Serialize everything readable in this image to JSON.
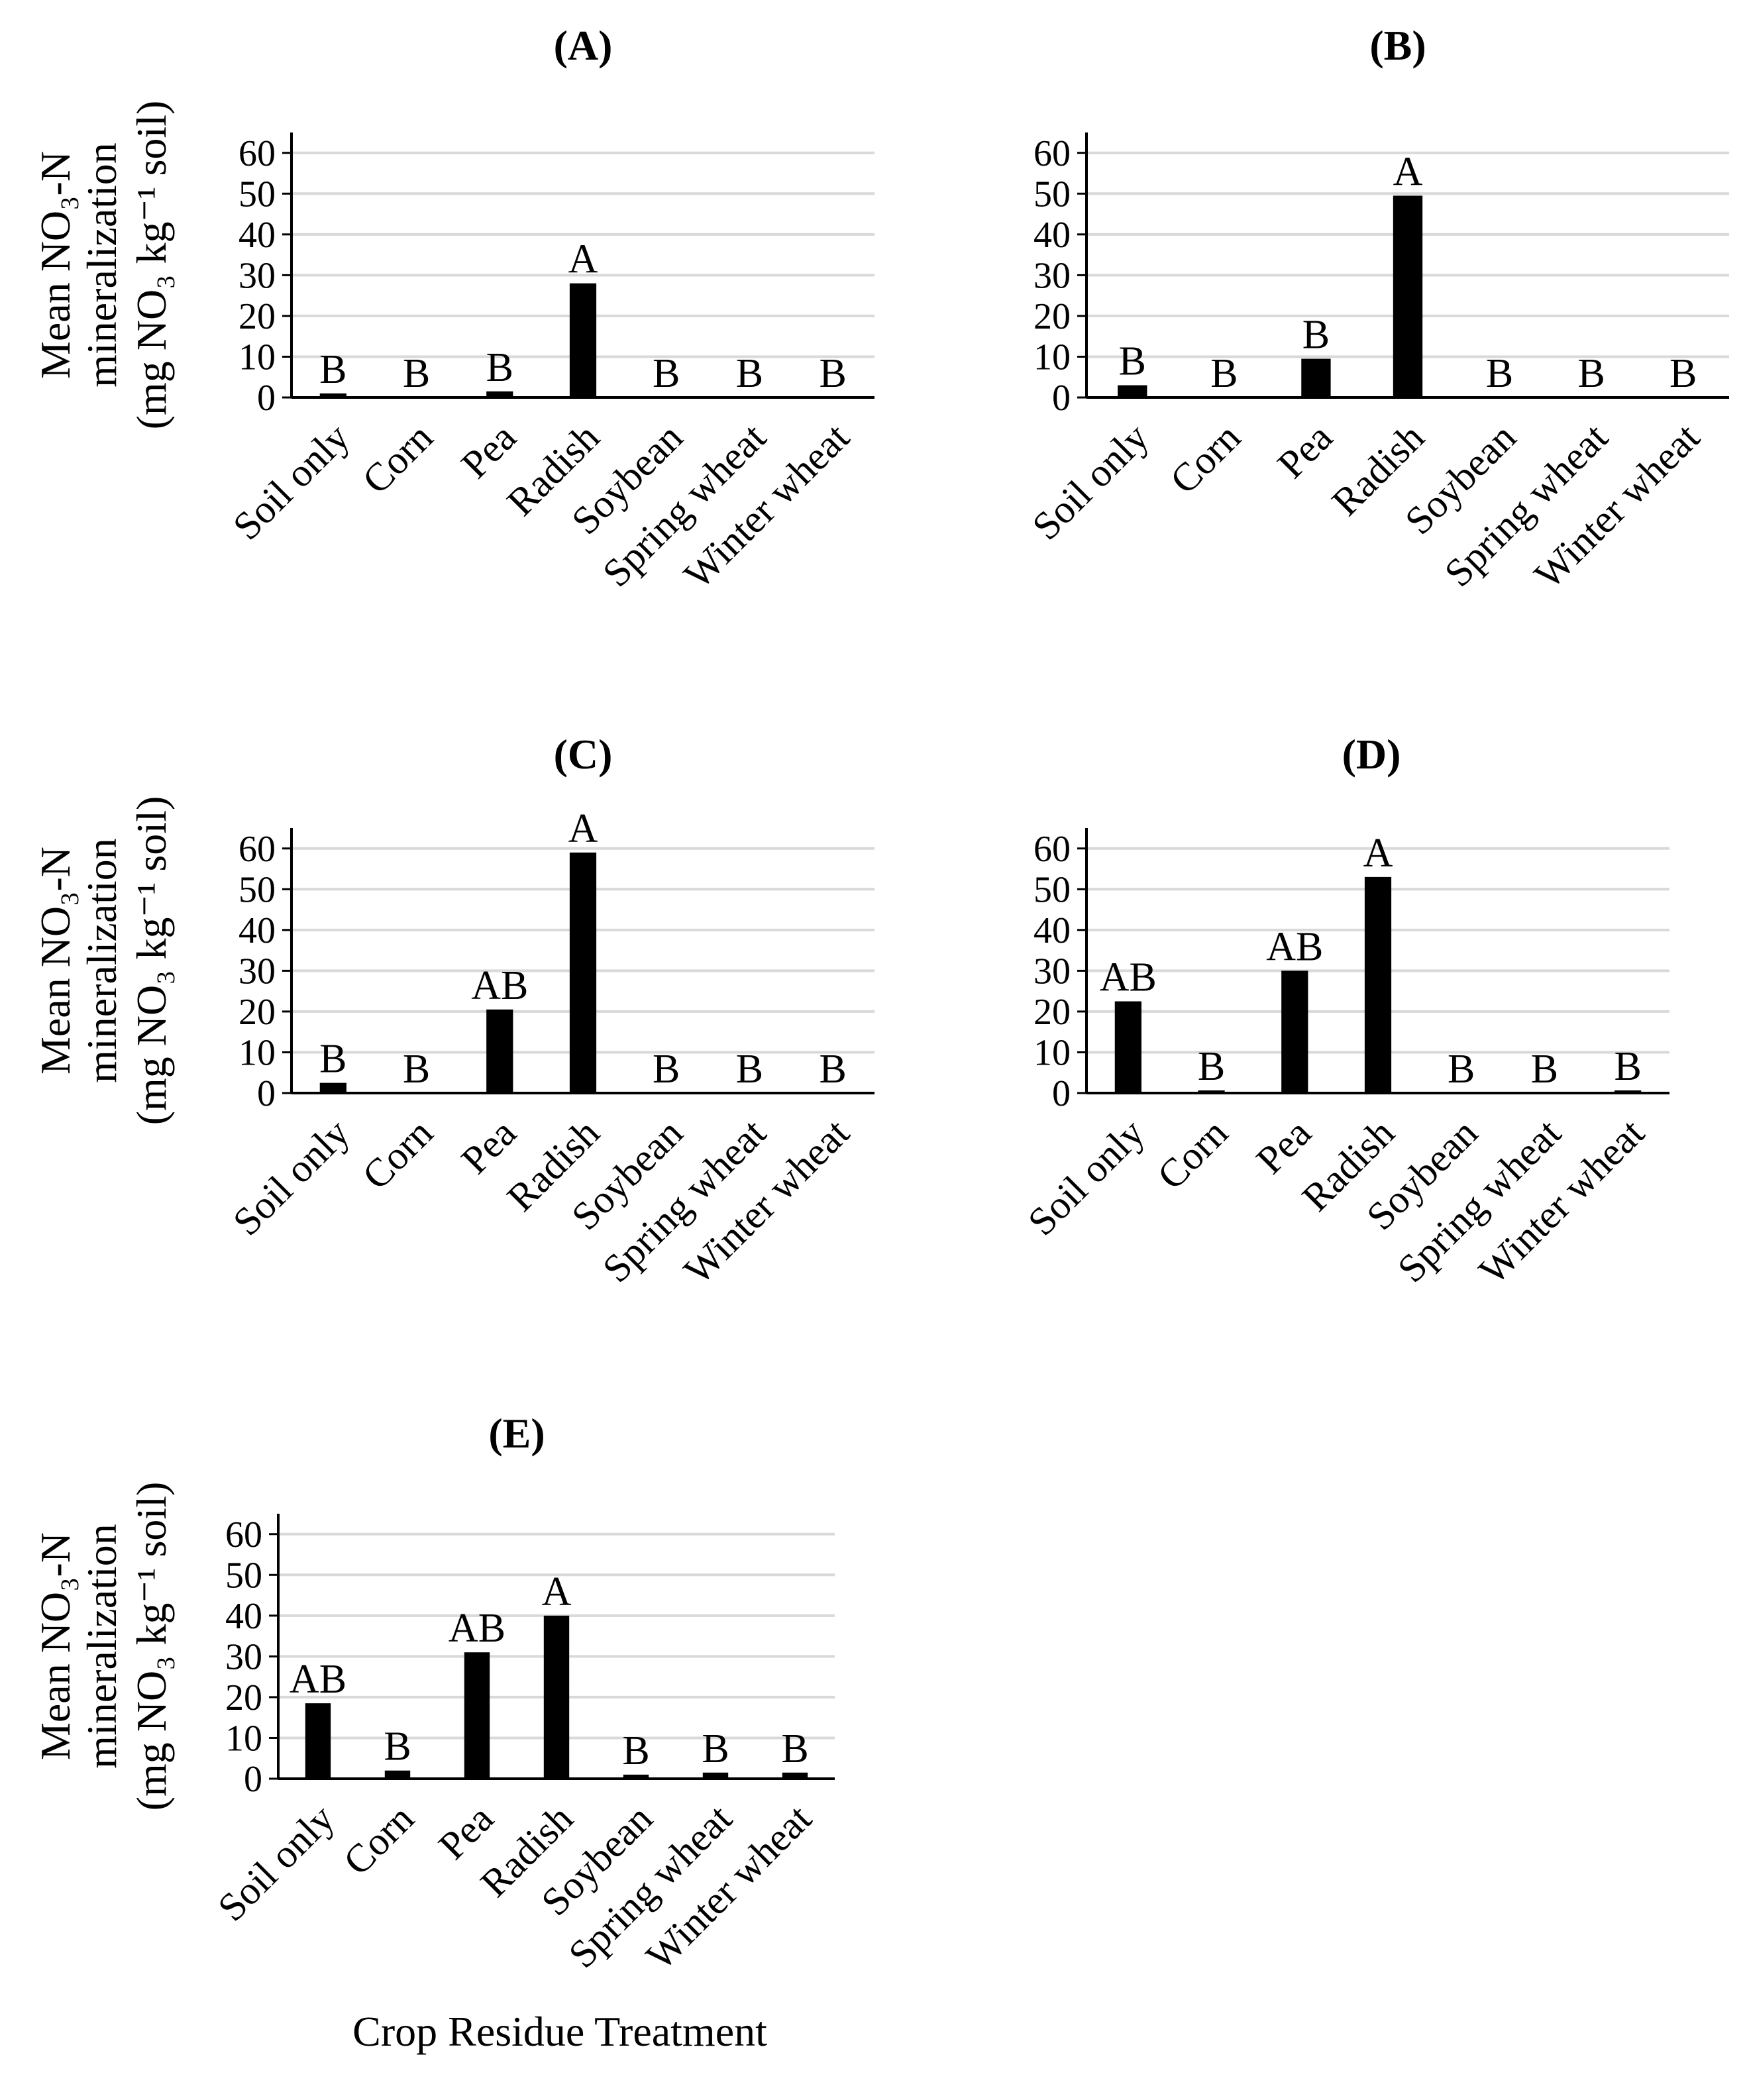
{
  "chart_data": [
    {
      "type": "bar",
      "title": "(A)",
      "categories": [
        "Soil only",
        "Corn",
        "Pea",
        "Radish",
        "Soybean",
        "Spring wheat",
        "Winter wheat"
      ],
      "values": [
        1,
        0,
        1.5,
        28,
        0,
        0,
        0
      ],
      "significance": [
        "B",
        "B",
        "B",
        "A",
        "B",
        "B",
        "B"
      ],
      "ylabel": [
        "Mean NO₃-N",
        "mineralization",
        "(mg NO₃ kg⁻¹ soil)"
      ],
      "yticks": [
        0,
        10,
        20,
        30,
        40,
        50,
        60
      ],
      "ylim": [
        0,
        65
      ],
      "grid": true
    },
    {
      "type": "bar",
      "title": "(B)",
      "categories": [
        "Soil only",
        "Corn",
        "Pea",
        "Radish",
        "Soybean",
        "Spring wheat",
        "Winter wheat"
      ],
      "values": [
        3,
        0,
        9.5,
        49.5,
        0,
        0,
        0
      ],
      "significance": [
        "B",
        "B",
        "B",
        "A",
        "B",
        "B",
        "B"
      ],
      "yticks": [
        0,
        10,
        20,
        30,
        40,
        50,
        60
      ],
      "ylim": [
        0,
        65
      ],
      "grid": true
    },
    {
      "type": "bar",
      "title": "(C)",
      "categories": [
        "Soil only",
        "Corn",
        "Pea",
        "Radish",
        "Soybean",
        "Spring wheat",
        "Winter wheat"
      ],
      "values": [
        2.5,
        0,
        20.5,
        59,
        0,
        0,
        0
      ],
      "significance": [
        "B",
        "B",
        "AB",
        "A",
        "B",
        "B",
        "B"
      ],
      "ylabel": [
        "Mean NO₃-N",
        "mineralization",
        "(mg NO₃ kg⁻¹ soil)"
      ],
      "yticks": [
        0,
        10,
        20,
        30,
        40,
        50,
        60
      ],
      "ylim": [
        0,
        65
      ],
      "grid": true
    },
    {
      "type": "bar",
      "title": "(D)",
      "categories": [
        "Soil only",
        "Corn",
        "Pea",
        "Radish",
        "Soybean",
        "Spring wheat",
        "Winter wheat"
      ],
      "values": [
        22.5,
        0.5,
        30,
        53,
        0,
        0,
        0.5
      ],
      "significance": [
        "AB",
        "B",
        "AB",
        "A",
        "B",
        "B",
        "B"
      ],
      "yticks": [
        0,
        10,
        20,
        30,
        40,
        50,
        60
      ],
      "ylim": [
        0,
        65
      ],
      "grid": true
    },
    {
      "type": "bar",
      "title": "(E)",
      "categories": [
        "Soil only",
        "Corn",
        "Pea",
        "Radish",
        "Soybean",
        "Spring wheat",
        "Winter wheat"
      ],
      "values": [
        18.5,
        2,
        31,
        40,
        1,
        1.5,
        1.5
      ],
      "significance": [
        "AB",
        "B",
        "AB",
        "A",
        "B",
        "B",
        "B"
      ],
      "ylabel": [
        "Mean NO₃-N",
        "mineralization",
        "(mg NO₃ kg⁻¹ soil)"
      ],
      "yticks": [
        0,
        10,
        20,
        30,
        40,
        50,
        60
      ],
      "ylim": [
        0,
        65
      ],
      "grid": true
    }
  ],
  "xlabel": "Crop Residue Treatment",
  "colors": {
    "bar": "#000000",
    "grid": "#d9d9d9",
    "axis": "#000000"
  }
}
